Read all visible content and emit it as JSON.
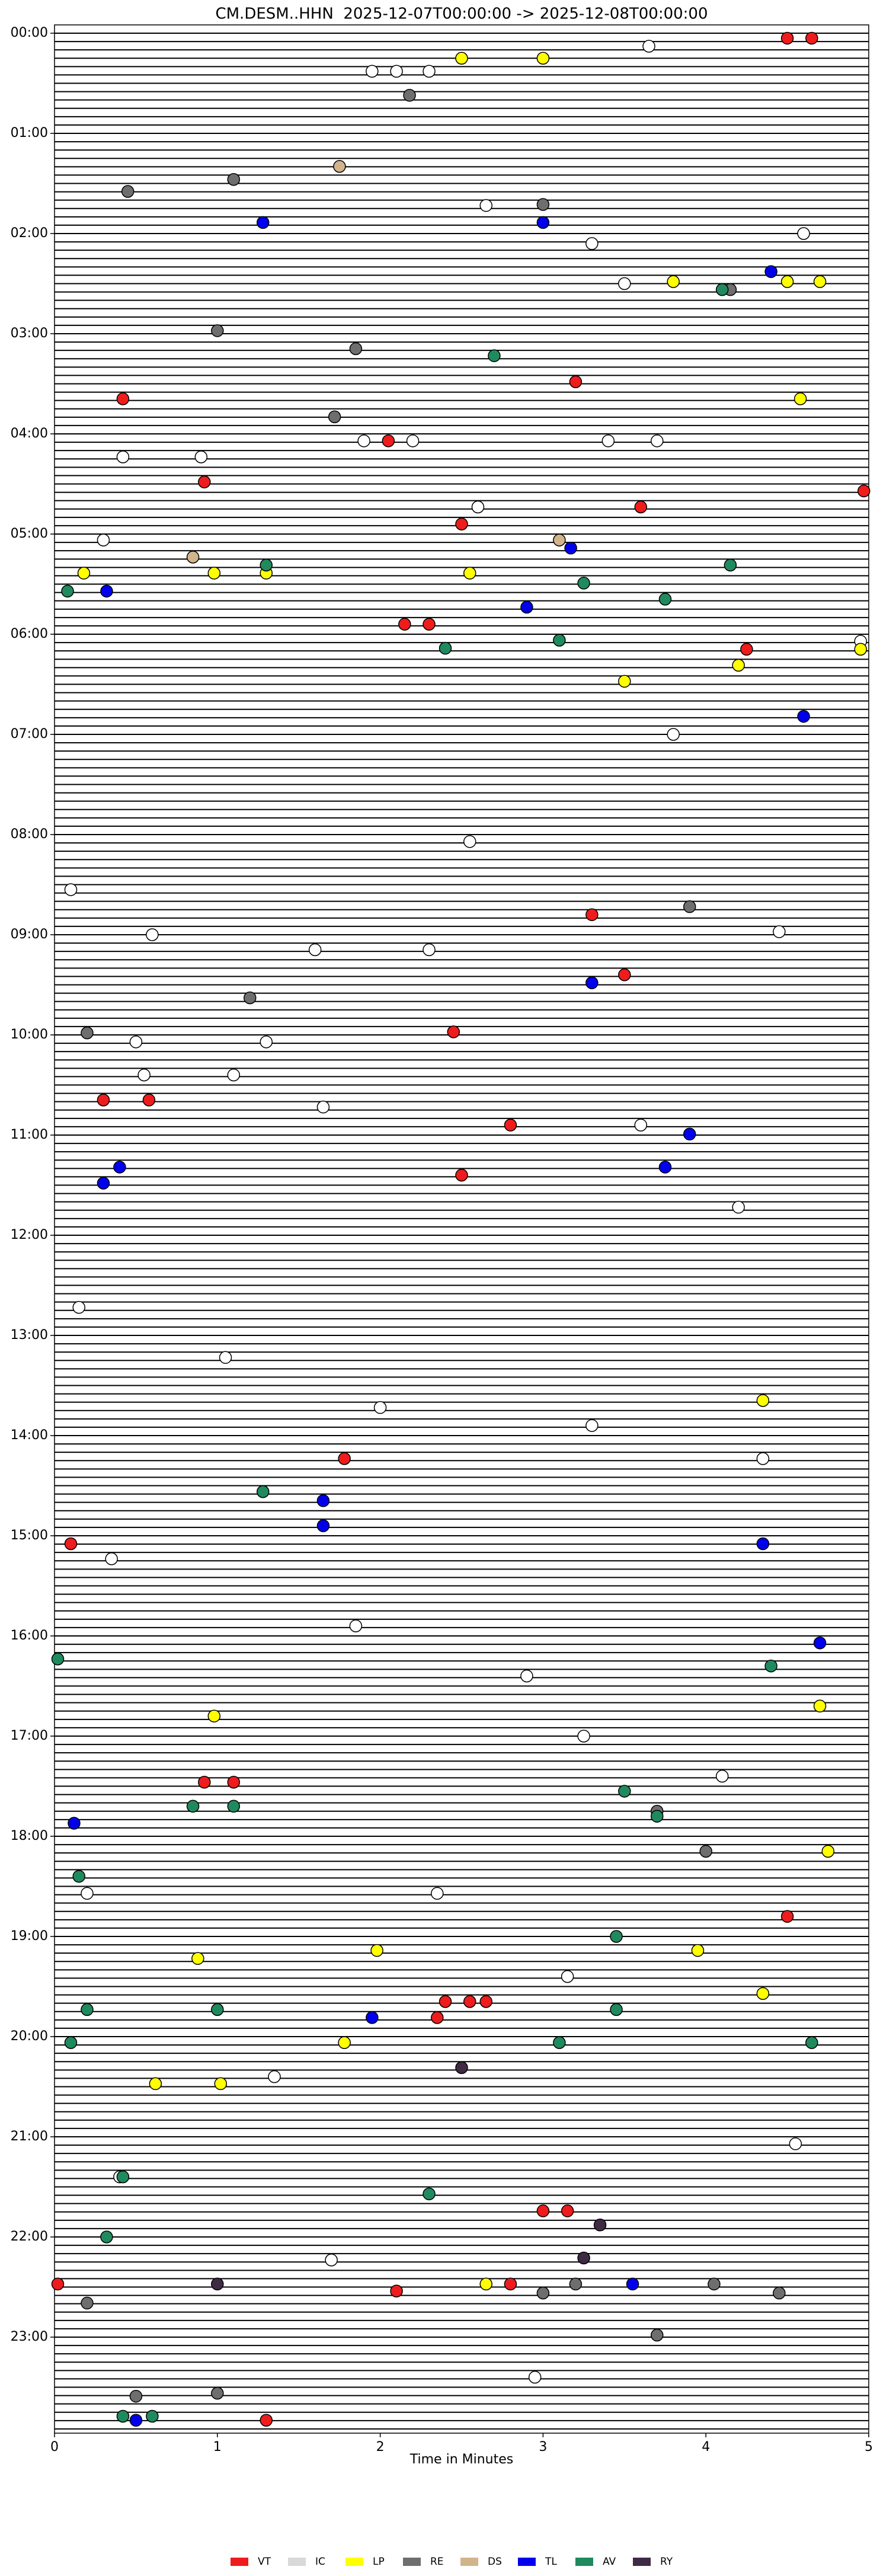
{
  "chart_data": {
    "type": "scatter",
    "title": "CM.DESM..HHN  2025-12-07T00:00:00 -> 2025-12-08T00:00:00",
    "xlabel": "Time in Minutes",
    "xlim": [
      0,
      5
    ],
    "xticks": [
      0,
      1,
      2,
      3,
      4,
      5
    ],
    "ylim": [
      0,
      24
    ],
    "yticks": [
      {
        "value": 0,
        "label": "00:00"
      },
      {
        "value": 1,
        "label": "01:00"
      },
      {
        "value": 2,
        "label": "02:00"
      },
      {
        "value": 3,
        "label": "03:00"
      },
      {
        "value": 4,
        "label": "04:00"
      },
      {
        "value": 5,
        "label": "05:00"
      },
      {
        "value": 6,
        "label": "06:00"
      },
      {
        "value": 7,
        "label": "07:00"
      },
      {
        "value": 8,
        "label": "08:00"
      },
      {
        "value": 9,
        "label": "09:00"
      },
      {
        "value": 10,
        "label": "10:00"
      },
      {
        "value": 11,
        "label": "11:00"
      },
      {
        "value": 12,
        "label": "12:00"
      },
      {
        "value": 13,
        "label": "13:00"
      },
      {
        "value": 14,
        "label": "14:00"
      },
      {
        "value": 15,
        "label": "15:00"
      },
      {
        "value": 16,
        "label": "16:00"
      },
      {
        "value": 17,
        "label": "17:00"
      },
      {
        "value": 18,
        "label": "18:00"
      },
      {
        "value": 19,
        "label": "19:00"
      },
      {
        "value": 20,
        "label": "20:00"
      },
      {
        "value": 21,
        "label": "21:00"
      },
      {
        "value": 22,
        "label": "22:00"
      },
      {
        "value": 23,
        "label": "23:00"
      }
    ],
    "legend": "bottom",
    "series": [
      {
        "name": "VT",
        "color": "#ee1c1c",
        "x": [
          4.5,
          4.65,
          0.42,
          3.2,
          2.05,
          0.92,
          3.6,
          4.97,
          2.5,
          2.15,
          2.3,
          4.25,
          3.3,
          3.5,
          2.45,
          0.3,
          0.58,
          2.8,
          2.5,
          0.1,
          1.78,
          0.92,
          1.1,
          4.5,
          2.4,
          2.55,
          2.65,
          2.35,
          3.0,
          3.15,
          2.1,
          2.8,
          0.02,
          1.3
        ],
        "y": [
          0.05,
          0.05,
          3.65,
          3.48,
          4.07,
          4.48,
          4.73,
          4.57,
          4.9,
          5.9,
          5.9,
          6.15,
          8.8,
          9.4,
          9.97,
          10.65,
          10.65,
          10.9,
          11.4,
          15.08,
          14.23,
          17.46,
          17.46,
          18.8,
          19.65,
          19.65,
          19.65,
          19.81,
          21.74,
          21.74,
          22.54,
          22.47,
          22.47,
          23.83
        ]
      },
      {
        "name": "IC",
        "color": "#d9d9d9",
        "x": [
          3.65,
          1.95,
          2.1,
          2.3,
          4.6,
          2.65,
          3.3,
          3.5,
          0.42,
          0.9,
          1.9,
          2.2,
          2.6,
          3.4,
          3.7,
          0.3,
          4.95,
          2.55,
          3.8,
          0.6,
          0.1,
          0.5,
          1.6,
          2.3,
          4.45,
          1.3,
          0.55,
          1.1,
          1.65,
          3.6,
          4.2,
          0.15,
          1.05,
          2.0,
          3.3,
          4.35,
          0.35,
          1.85,
          2.9,
          3.25,
          4.1,
          0.2,
          2.35,
          3.15,
          1.35,
          4.55,
          0.4,
          1.7,
          2.95
        ],
        "y": [
          0.13,
          0.38,
          0.38,
          0.38,
          2.0,
          1.72,
          2.1,
          2.5,
          4.23,
          4.23,
          4.07,
          4.07,
          4.73,
          4.07,
          4.07,
          5.06,
          6.07,
          8.07,
          7.0,
          9.0,
          8.55,
          10.07,
          9.15,
          9.15,
          8.97,
          10.07,
          10.4,
          10.4,
          10.72,
          10.9,
          11.72,
          12.72,
          13.22,
          13.72,
          13.9,
          14.23,
          15.23,
          15.9,
          16.4,
          17.0,
          17.4,
          18.57,
          18.57,
          19.4,
          20.4,
          21.07,
          21.4,
          22.23,
          23.4
        ]
      },
      {
        "name": "LP",
        "color": "#ffff00",
        "x": [
          2.5,
          3.0,
          3.8,
          4.5,
          4.7,
          4.58,
          0.18,
          0.98,
          1.3,
          2.55,
          3.5,
          4.2,
          4.95,
          4.35,
          0.98,
          4.7,
          4.75,
          1.98,
          0.88,
          1.78,
          0.62,
          1.02,
          2.65,
          3.95,
          4.35
        ],
        "y": [
          0.25,
          0.25,
          2.48,
          2.48,
          2.48,
          3.65,
          5.39,
          5.39,
          5.39,
          5.39,
          6.47,
          6.31,
          6.15,
          13.65,
          16.8,
          16.7,
          18.15,
          19.14,
          19.22,
          20.06,
          20.47,
          20.47,
          22.47,
          19.14,
          19.57
        ]
      },
      {
        "name": "RE",
        "color": "#6e6e6e",
        "x": [
          2.18,
          1.1,
          0.45,
          3.0,
          4.15,
          1.0,
          1.85,
          1.72,
          0.2,
          3.7,
          3.9,
          0.2,
          1.2,
          0.5,
          4.05,
          3.2,
          4.0,
          3.7,
          1.0,
          3.0,
          4.45
        ],
        "y": [
          0.62,
          1.46,
          1.58,
          1.71,
          2.56,
          2.97,
          3.15,
          3.83,
          22.66,
          22.98,
          8.72,
          9.98,
          9.63,
          23.59,
          22.47,
          22.47,
          18.15,
          17.75,
          23.56,
          22.56,
          22.56
        ]
      },
      {
        "name": "DS",
        "color": "#d2b48c",
        "x": [
          1.75,
          0.85,
          3.1
        ],
        "y": [
          1.33,
          5.23,
          5.06
        ]
      },
      {
        "name": "TL",
        "color": "#0000ee",
        "x": [
          1.28,
          3.0,
          3.17,
          2.9,
          0.32,
          4.6,
          4.4,
          3.3,
          0.4,
          0.3,
          3.75,
          3.9,
          1.65,
          1.65,
          4.35,
          4.7,
          0.12,
          1.95,
          3.55,
          0.5
        ],
        "y": [
          1.89,
          1.89,
          5.14,
          5.73,
          5.57,
          6.82,
          2.38,
          9.48,
          11.32,
          11.48,
          11.32,
          10.99,
          14.65,
          14.9,
          15.08,
          16.07,
          17.87,
          19.81,
          22.47,
          23.83
        ]
      },
      {
        "name": "AV",
        "color": "#1f8a5e",
        "x": [
          2.7,
          4.1,
          3.1,
          3.25,
          2.4,
          3.75,
          4.15,
          1.3,
          0.08,
          0.42,
          0.6,
          4.4,
          0.02,
          3.5,
          3.7,
          0.15,
          0.2,
          3.45,
          3.45,
          1.0,
          0.1,
          3.1,
          0.42,
          0.32,
          2.3,
          4.65,
          1.28,
          0.85,
          1.1
        ],
        "y": [
          3.22,
          2.56,
          6.06,
          5.49,
          6.14,
          5.65,
          5.31,
          5.31,
          5.57,
          23.79,
          23.79,
          16.3,
          16.23,
          17.55,
          17.8,
          18.4,
          19.73,
          19.0,
          19.73,
          19.73,
          20.06,
          20.06,
          21.4,
          22.0,
          21.57,
          20.06,
          14.56,
          17.7,
          17.7
        ]
      },
      {
        "name": "RY",
        "color": "#3f2a44",
        "x": [
          1.0,
          3.25,
          3.35,
          2.5
        ],
        "y": [
          22.47,
          22.21,
          21.88,
          20.31
        ]
      }
    ]
  }
}
